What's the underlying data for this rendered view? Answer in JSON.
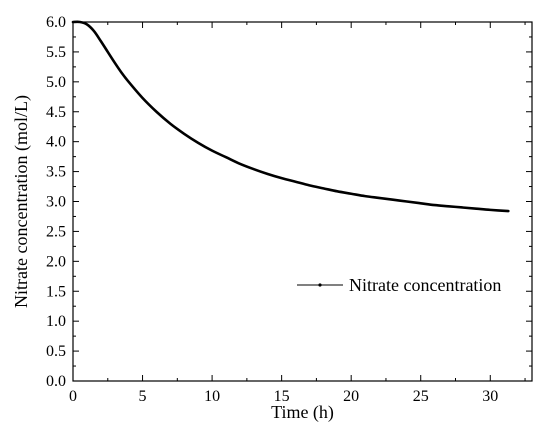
{
  "chart_data": {
    "type": "line",
    "xlabel": "Time (h)",
    "ylabel": "Nitrate concentration (mol/L)",
    "xlim": [
      0,
      33
    ],
    "ylim": [
      0.0,
      6.0
    ],
    "x_ticks": [
      "0",
      "5",
      "10",
      "15",
      "20",
      "25",
      "30"
    ],
    "y_ticks": [
      "0.0",
      "0.5",
      "1.0",
      "1.5",
      "2.0",
      "2.5",
      "3.0",
      "3.5",
      "4.0",
      "4.5",
      "5.0",
      "5.5",
      "6.0"
    ],
    "grid": false,
    "legend_position": "right-middle",
    "series": [
      {
        "name": "Nitrate concentration",
        "color": "#000000",
        "x": [
          0,
          0.5,
          1,
          1.5,
          2,
          2.5,
          3,
          3.5,
          4,
          5,
          6,
          7,
          8,
          9,
          10,
          11,
          12,
          13,
          14,
          15,
          16,
          17,
          18,
          19,
          20,
          21,
          22,
          23,
          24,
          25,
          26,
          27,
          28,
          29,
          30,
          31.3
        ],
        "y": [
          6.0,
          6.0,
          5.96,
          5.85,
          5.68,
          5.5,
          5.32,
          5.15,
          5.0,
          4.73,
          4.5,
          4.3,
          4.13,
          3.98,
          3.85,
          3.74,
          3.63,
          3.54,
          3.46,
          3.39,
          3.33,
          3.27,
          3.22,
          3.17,
          3.13,
          3.09,
          3.06,
          3.03,
          3.0,
          2.97,
          2.94,
          2.92,
          2.9,
          2.88,
          2.86,
          2.84
        ]
      }
    ]
  }
}
